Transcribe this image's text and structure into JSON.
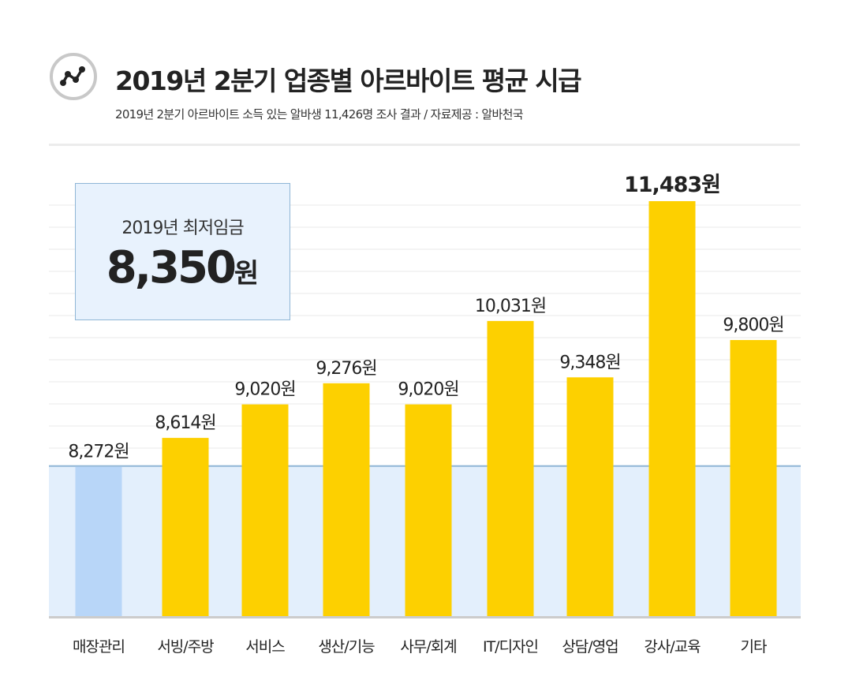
{
  "header": {
    "icon": "line-chart-icon",
    "title": "2019년 2분기 업종별 아르바이트 평균 시급",
    "subtitle": "2019년 2분기 아르바이트 소득 있는 알바생 11,426명 조사 결과 / 자료제공 : 알바천국"
  },
  "callout": {
    "label": "2019년 최저임금",
    "value": "8,350",
    "unit": "원"
  },
  "chart_data": {
    "type": "bar",
    "title": "2019년 2분기 업종별 아르바이트 평균 시급",
    "categories": [
      "매장관리",
      "서빙/주방",
      "서비스",
      "생산/기능",
      "사무/회계",
      "IT/디자인",
      "상담/영업",
      "강사/교육",
      "기타"
    ],
    "values": [
      8272,
      8614,
      9020,
      9276,
      9020,
      10031,
      9348,
      11483,
      9800
    ],
    "data_labels": [
      "8,272원",
      "8,614원",
      "9,020원",
      "9,276원",
      "9,020원",
      "10,031원",
      "9,348원",
      "11,483원",
      "9,800원"
    ],
    "reference_line": {
      "value": 8350,
      "label": "2019년 최저임금"
    },
    "highlight_max": "강사/교육",
    "colors": {
      "bar": "#fdd000",
      "below_min_bar": "#b8d6f8",
      "min_wage_band": "#e3effc",
      "min_wage_line": "#8fb6d6",
      "axis": "#cccccc"
    },
    "grid": true
  }
}
